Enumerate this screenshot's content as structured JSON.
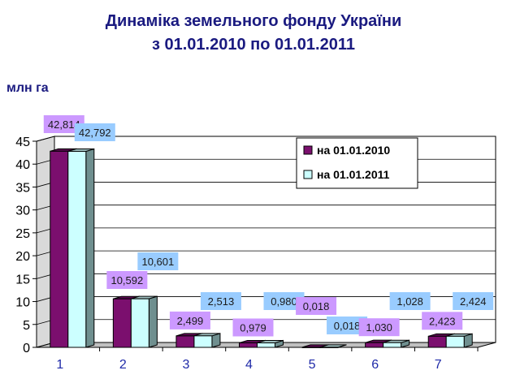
{
  "chart_data": {
    "type": "bar",
    "title_line1": "Динаміка земельного фонду України",
    "title_line2": "з 01.01.2010 по 01.01.2011",
    "ylabel": "млн га",
    "categories": [
      "1",
      "2",
      "3",
      "4",
      "5",
      "6",
      "7"
    ],
    "series": [
      {
        "name": "на 01.01.2010",
        "values": [
          42.814,
          10.592,
          2.499,
          0.979,
          0.018,
          1.03,
          2.423
        ],
        "labels": [
          "42,814",
          "10,592",
          "2,499",
          "0,979",
          "0,018",
          "1,030",
          "2,423"
        ],
        "color": "#7b0f6e",
        "label_bg": "#cc99ff"
      },
      {
        "name": "на 01.01.2011",
        "values": [
          42.792,
          10.601,
          2.513,
          0.98,
          0.018,
          1.028,
          2.424
        ],
        "labels": [
          "42,792",
          "10,601",
          "2,513",
          "0,980",
          "0,018",
          "1,028",
          "2,424"
        ],
        "color": "#ccffff",
        "label_bg": "#99ccff"
      }
    ],
    "ylim": [
      0,
      45
    ],
    "yticks": [
      "0",
      "5",
      "10",
      "15",
      "20",
      "25",
      "30",
      "35",
      "40",
      "45"
    ],
    "grid": true,
    "legend_position": "top-right"
  }
}
